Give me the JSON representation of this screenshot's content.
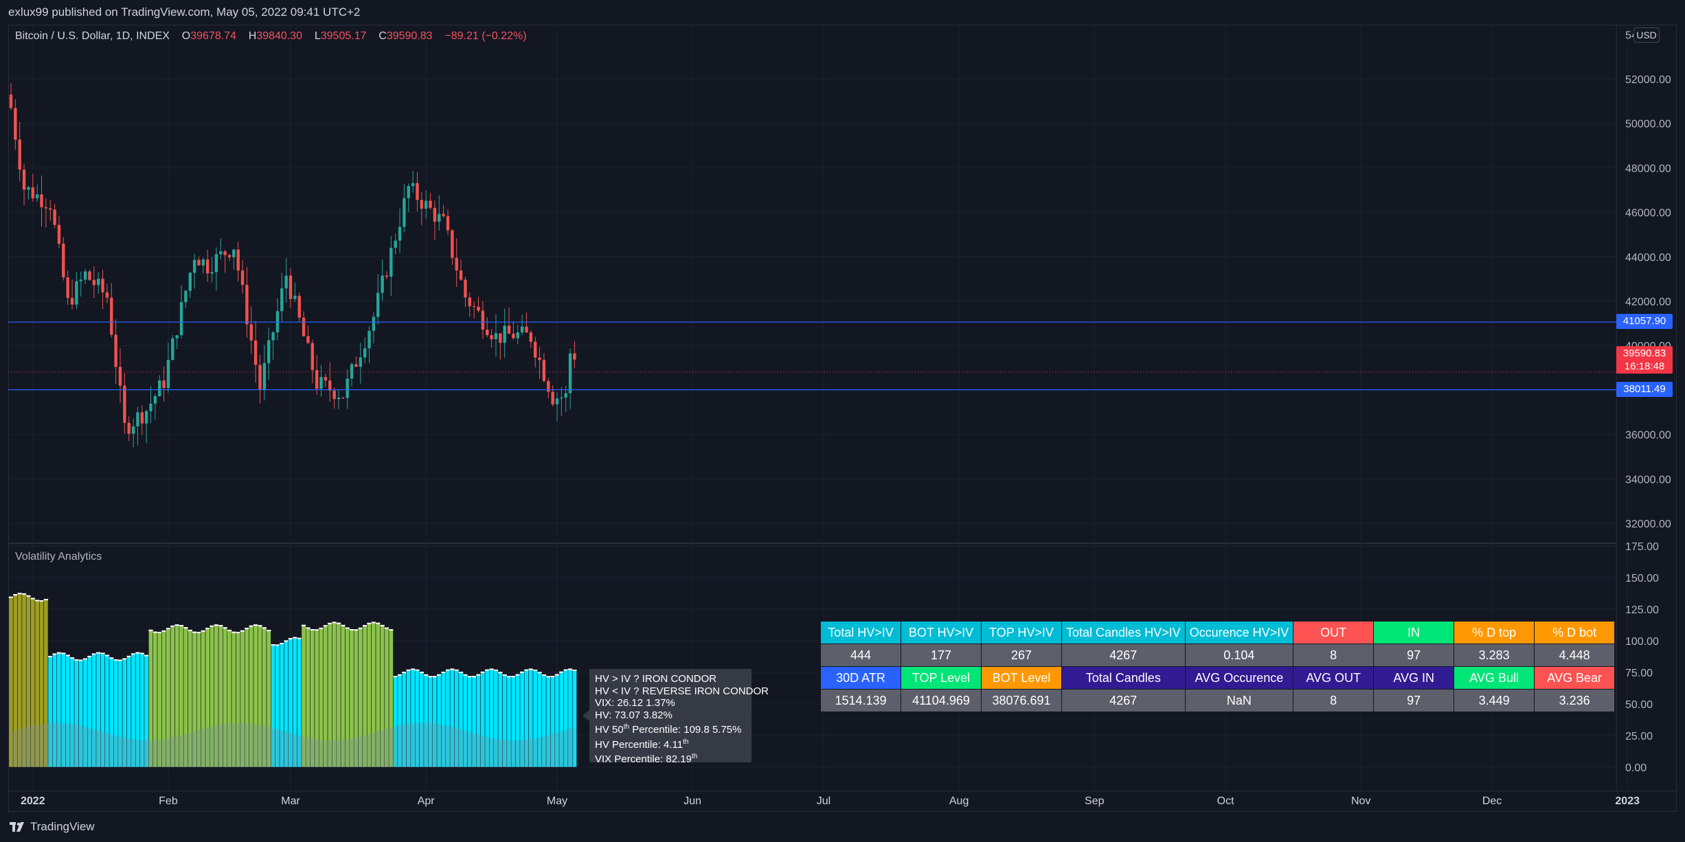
{
  "header": {
    "published_text": "exlux99 published on TradingView.com, May 05, 2022 09:41 UTC+2"
  },
  "symbol": {
    "name": "Bitcoin / U.S. Dollar, 1D, INDEX",
    "o_label": "O",
    "o_value": "39678.74",
    "h_label": "H",
    "h_value": "39840.30",
    "l_label": "L",
    "l_value": "39505.17",
    "c_label": "C",
    "c_value": "39590.83",
    "change": "−89.21 (−0.22%)"
  },
  "price_axis": {
    "currency": "USD",
    "labels": [
      "52000.00",
      "50000.00",
      "48000.00",
      "46000.00",
      "44000.00",
      "42000.00",
      "40000.00",
      "38000.00",
      "36000.00",
      "34000.00",
      "32000.00"
    ],
    "top_clip": "54"
  },
  "price_tags": {
    "upper_level": "41057.90",
    "last_price": "39590.83",
    "countdown": "16:18:48",
    "lower_level": "38011.49"
  },
  "indicator": {
    "title": "Volatility Analytics",
    "axis_labels": [
      "175.00",
      "150.00",
      "125.00",
      "100.00",
      "75.00",
      "50.00",
      "25.00",
      "0.00"
    ]
  },
  "time_axis": {
    "labels": [
      "2022",
      "Feb",
      "Mar",
      "Apr",
      "May",
      "Jun",
      "Jul",
      "Aug",
      "Sep",
      "Oct",
      "Nov",
      "Dec",
      "2023"
    ]
  },
  "tooltip": {
    "line1": "HV > IV ?  IRON CONDOR",
    "line2": "HV < IV ? REVERSE IRON CONDOR",
    "line3": "VIX: 26.12  1.37%",
    "line4": "HV: 73.07  3.82%",
    "line5_a": "HV 50",
    "line5_sup": "th",
    "line5_b": " Percentile: 109.8  5.75%",
    "line6_a": "HV Percentile: 4.11",
    "line6_sup": "th",
    "line7_a": "VIX Percentile: 82.19",
    "line7_sup": "th"
  },
  "stats_table": {
    "row1": [
      "Total  HV>IV",
      "BOT  HV>IV",
      "TOP  HV>IV",
      "Total Candles HV>IV",
      "Occurence  HV>IV",
      "OUT",
      "IN",
      "% D top",
      "% D bot"
    ],
    "row2": [
      "444",
      "177",
      "267",
      "4267",
      "0.104",
      "8",
      "97",
      "3.283",
      "4.448"
    ],
    "row3": [
      "30D ATR",
      "TOP Level",
      "BOT Level",
      "Total Candles",
      "AVG Occurence",
      "AVG OUT",
      "AVG IN",
      "AVG Bull",
      "AVG Bear"
    ],
    "row4": [
      "1514.139",
      "41104.969",
      "38076.691",
      "4267",
      "NaN",
      "8",
      "97",
      "3.449",
      "3.236"
    ]
  },
  "footer": {
    "brand": "TradingView"
  },
  "colors": {
    "background": "#131722",
    "up_candle": "#26a69a",
    "down_candle": "#ef5350",
    "level_line": "#2962ff",
    "hv_fill_cyan": "#00e5ff",
    "hv_fill_green": "#8bc34a",
    "hv_fill_olive": "#9e9d24"
  },
  "chart_data": {
    "type": "candlestick",
    "x_start": "2021-12-27",
    "x_end": "2022-05-05",
    "ylim": [
      31000,
      54000
    ],
    "close_path": [
      [
        "2021-12-27",
        50700
      ],
      [
        "2021-12-30",
        47100
      ],
      [
        "2022-01-05",
        46400
      ],
      [
        "2022-01-09",
        41900
      ],
      [
        "2022-01-13",
        43200
      ],
      [
        "2022-01-18",
        42200
      ],
      [
        "2022-01-22",
        36300
      ],
      [
        "2022-01-27",
        37100
      ],
      [
        "2022-01-31",
        38400
      ],
      [
        "2022-02-07",
        44100
      ],
      [
        "2022-02-10",
        43600
      ],
      [
        "2022-02-16",
        44500
      ],
      [
        "2022-02-22",
        38100
      ],
      [
        "2022-02-28",
        43200
      ],
      [
        "2022-03-07",
        38300
      ],
      [
        "2022-03-13",
        37800
      ],
      [
        "2022-03-20",
        41300
      ],
      [
        "2022-03-24",
        44200
      ],
      [
        "2022-03-28",
        47100
      ],
      [
        "2022-04-05",
        45500
      ],
      [
        "2022-04-10",
        42200
      ],
      [
        "2022-04-17",
        40400
      ],
      [
        "2022-04-21",
        40500
      ],
      [
        "2022-04-25",
        40400
      ],
      [
        "2022-04-30",
        37700
      ],
      [
        "2022-05-03",
        37700
      ],
      [
        "2022-05-04",
        39680
      ],
      [
        "2022-05-05",
        39590
      ]
    ],
    "levels": [
      41057.9,
      38011.49
    ],
    "indicator": {
      "ylim": [
        0,
        175
      ],
      "segments": [
        {
          "from": "2021-12-27",
          "to": "2022-01-04",
          "value": 135,
          "fill": "olive"
        },
        {
          "from": "2022-01-05",
          "to": "2022-01-27",
          "value": 88,
          "fill": "cyan"
        },
        {
          "from": "2022-01-28",
          "to": "2022-02-24",
          "value": 110,
          "fill": "green"
        },
        {
          "from": "2022-02-25",
          "to": "2022-03-03",
          "value": 100,
          "fill": "cyan"
        },
        {
          "from": "2022-03-04",
          "to": "2022-03-24",
          "value": 112,
          "fill": "green"
        },
        {
          "from": "2022-03-25",
          "to": "2022-05-05",
          "value": 75,
          "fill": "cyan"
        }
      ]
    }
  }
}
